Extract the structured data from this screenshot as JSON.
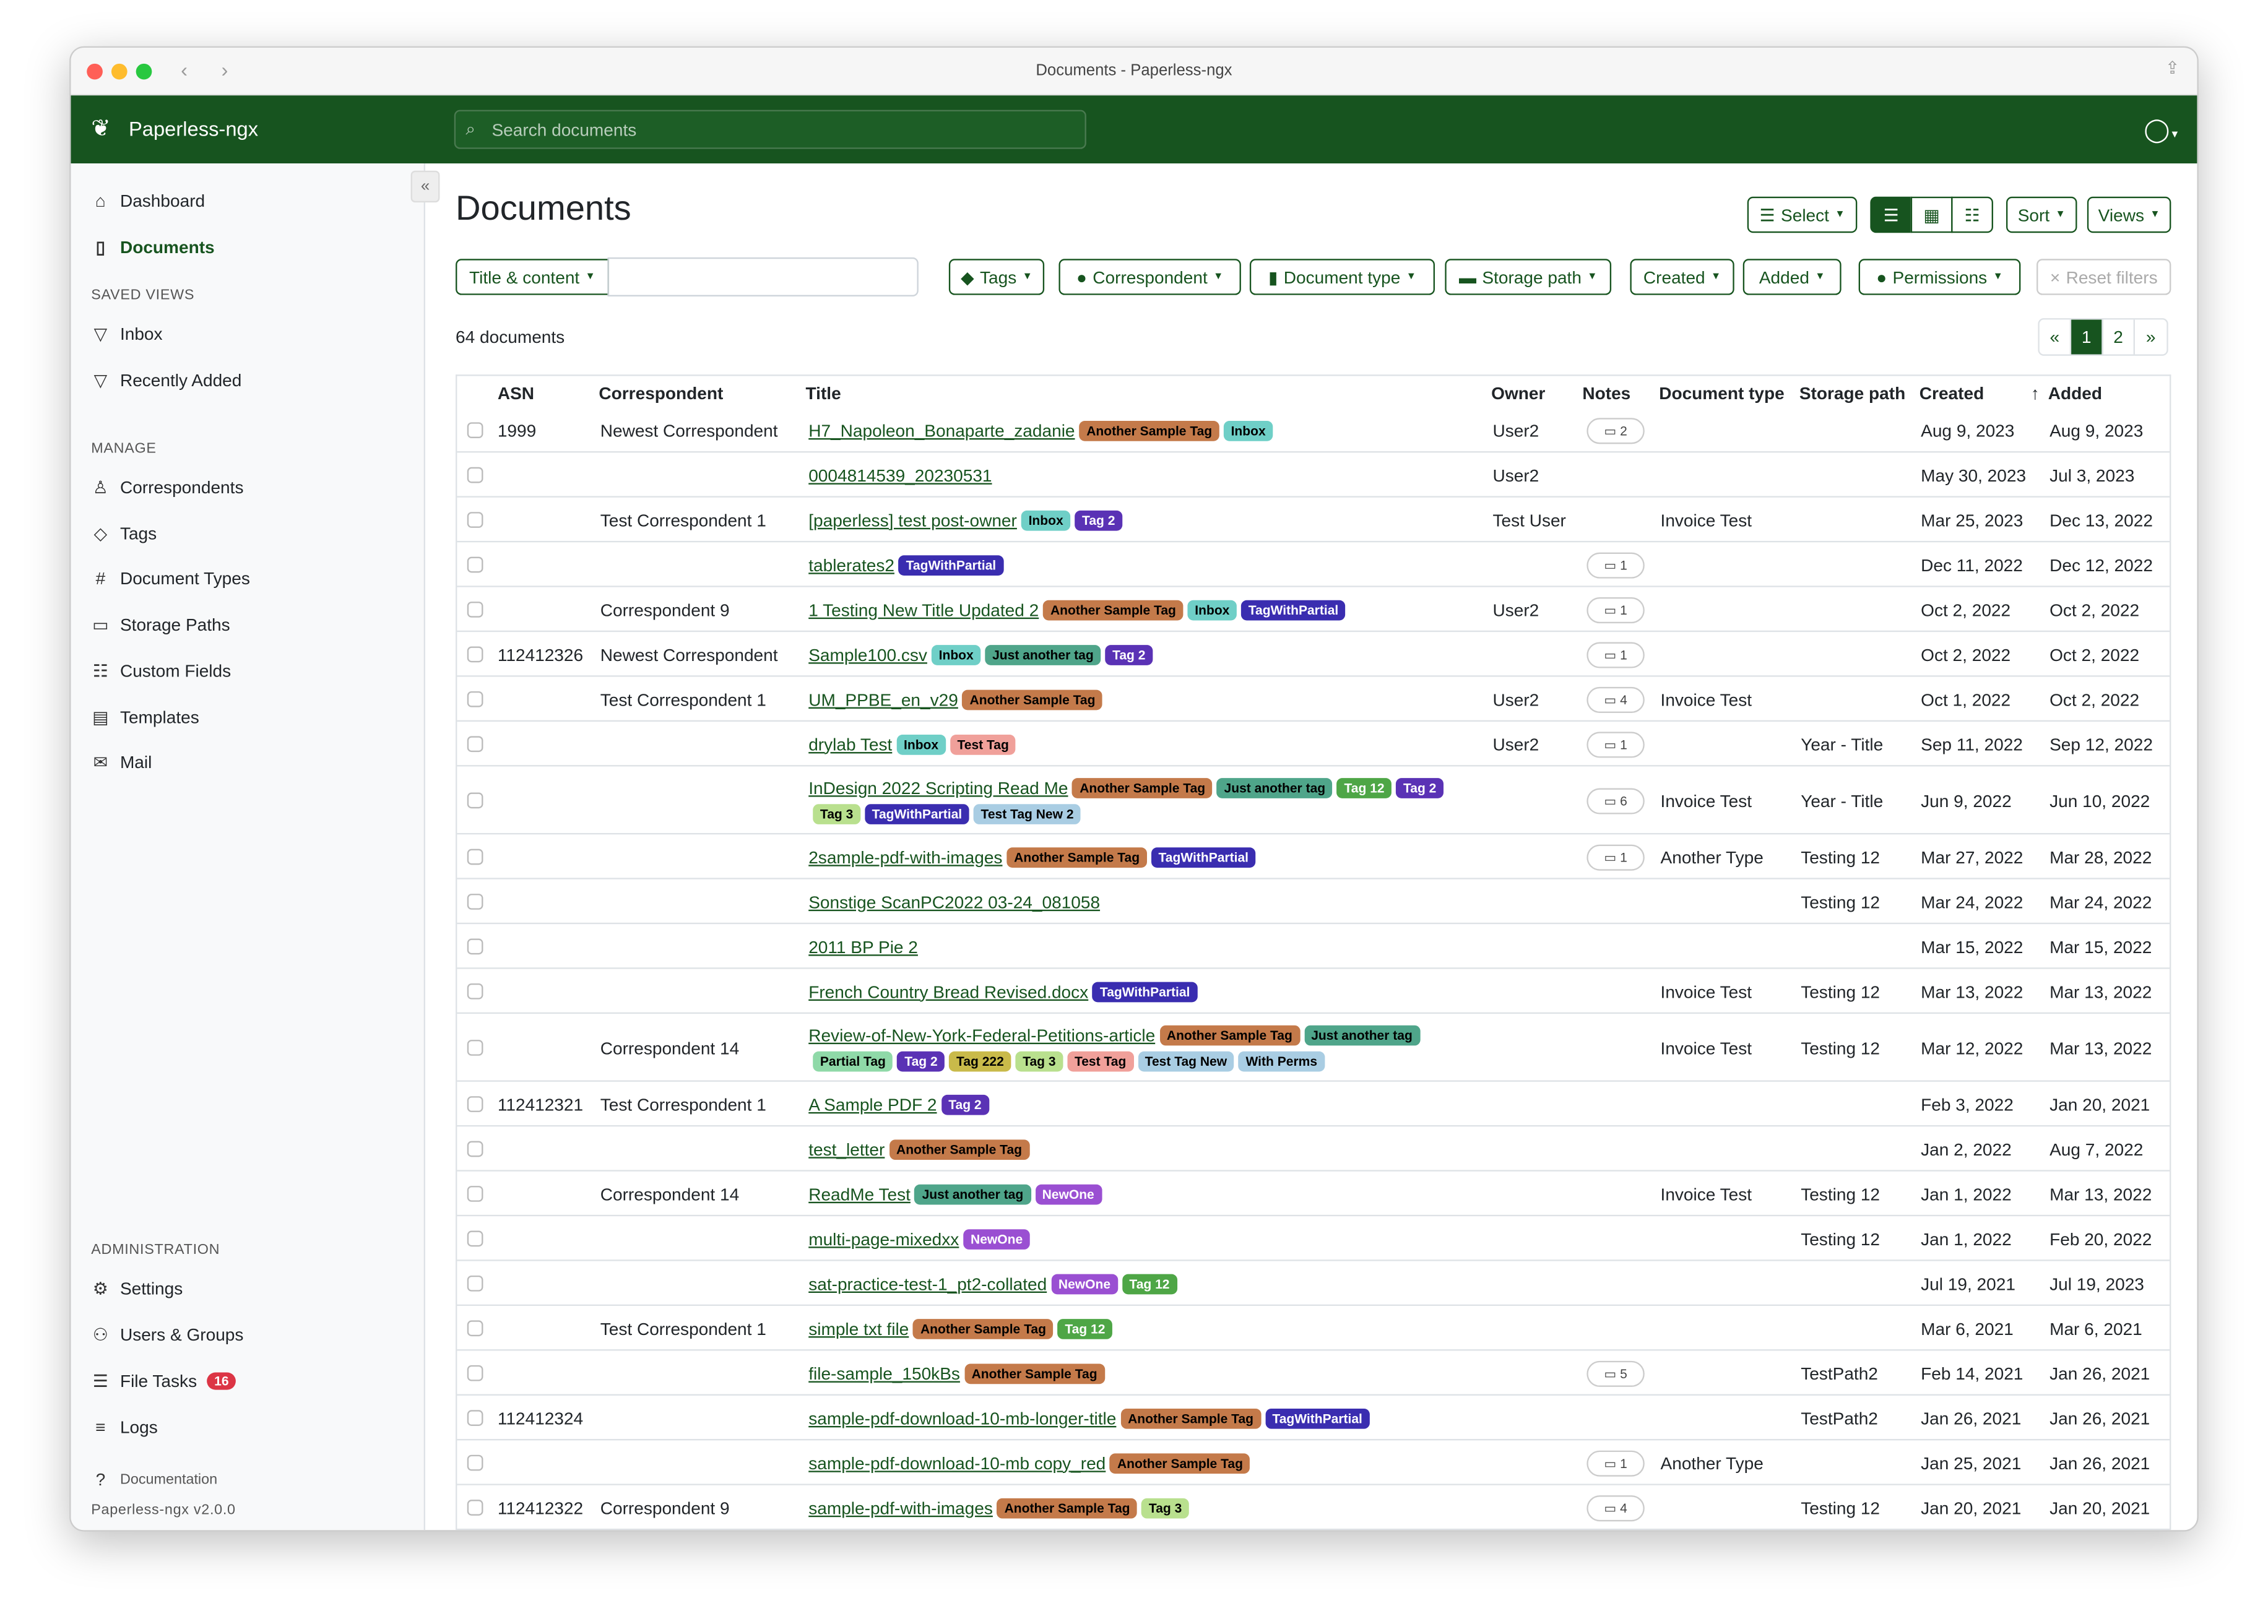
{
  "window": {
    "title": "Documents - Paperless-ngx"
  },
  "header": {
    "brand": "Paperless-ngx",
    "search_placeholder": "Search documents"
  },
  "sidebar": {
    "items": [
      {
        "label": "Dashboard",
        "icon": "house-icon"
      },
      {
        "label": "Documents",
        "icon": "file-icon"
      }
    ],
    "saved_views_heading": "SAVED VIEWS",
    "saved_views": [
      {
        "label": "Inbox",
        "icon": "funnel-icon"
      },
      {
        "label": "Recently Added",
        "icon": "funnel-icon"
      }
    ],
    "manage_heading": "MANAGE",
    "manage": [
      {
        "label": "Correspondents",
        "icon": "person-icon"
      },
      {
        "label": "Tags",
        "icon": "tag-icon"
      },
      {
        "label": "Document Types",
        "icon": "hash-icon"
      },
      {
        "label": "Storage Paths",
        "icon": "folder-icon"
      },
      {
        "label": "Custom Fields",
        "icon": "ui-radios-icon"
      },
      {
        "label": "Templates",
        "icon": "file-text-icon"
      },
      {
        "label": "Mail",
        "icon": "envelope-icon"
      }
    ],
    "admin_heading": "ADMINISTRATION",
    "admin": [
      {
        "label": "Settings",
        "icon": "gear-icon"
      },
      {
        "label": "Users & Groups",
        "icon": "people-icon"
      },
      {
        "label": "File Tasks",
        "icon": "list-task-icon",
        "badge": "16"
      },
      {
        "label": "Logs",
        "icon": "text-lines-icon"
      }
    ],
    "documentation": "Documentation",
    "version": "Paperless-ngx v2.0.0"
  },
  "main": {
    "title": "Documents",
    "select": "Select",
    "sort": "Sort",
    "views": "Views",
    "filters": {
      "title_content": "Title & content",
      "tags": "Tags",
      "correspondent": "Correspondent",
      "document_type": "Document type",
      "storage_path": "Storage path",
      "created": "Created",
      "added": "Added",
      "permissions": "Permissions",
      "reset": "Reset filters"
    },
    "count": "64 documents",
    "pager": [
      "«",
      "1",
      "2",
      "»"
    ],
    "columns": {
      "asn": "ASN",
      "correspondent": "Correspondent",
      "title": "Title",
      "owner": "Owner",
      "notes": "Notes",
      "doctype": "Document type",
      "storage": "Storage path",
      "created": "Created",
      "added": "Added"
    }
  },
  "tag_colors": {
    "Another Sample Tag": [
      "#c47a4a",
      "#000"
    ],
    "Inbox": [
      "#6fcfc7",
      "#000"
    ],
    "Tag 2": [
      "#5a32b5",
      "#fff"
    ],
    "TagWithPartial": [
      "#3a2db0",
      "#fff"
    ],
    "Just another tag": [
      "#4fa58a",
      "#000"
    ],
    "Tag 12": [
      "#4ea646",
      "#fff"
    ],
    "Tag 3": [
      "#b9e08e",
      "#000"
    ],
    "Test Tag": [
      "#f0a09a",
      "#000"
    ],
    "Test Tag New 2": [
      "#a9cde3",
      "#000"
    ],
    "Test Tag New": [
      "#a9cde3",
      "#000"
    ],
    "Partial Tag": [
      "#8fd9a8",
      "#000"
    ],
    "Tag 222": [
      "#c9ba4a",
      "#000"
    ],
    "With Perms": [
      "#a9cde3",
      "#000"
    ],
    "NewOne": [
      "#9a4fd2",
      "#fff"
    ]
  },
  "rows": [
    {
      "asn": "1999",
      "corr": "Newest Correspondent",
      "title": "H7_Napoleon_Bonaparte_zadanie",
      "tags": [
        "Another Sample Tag",
        "Inbox"
      ],
      "owner": "User2",
      "notes": "2",
      "doctype": "",
      "storage": "",
      "created": "Aug 9, 2023",
      "added": "Aug 9, 2023"
    },
    {
      "asn": "",
      "corr": "",
      "title": "0004814539_20230531",
      "tags": [],
      "owner": "User2",
      "notes": "",
      "doctype": "",
      "storage": "",
      "created": "May 30, 2023",
      "added": "Jul 3, 2023"
    },
    {
      "asn": "",
      "corr": "Test Correspondent 1",
      "title": "[paperless] test post-owner",
      "tags": [
        "Inbox",
        "Tag 2"
      ],
      "owner": "Test User",
      "notes": "",
      "doctype": "Invoice Test",
      "storage": "",
      "created": "Mar 25, 2023",
      "added": "Dec 13, 2022"
    },
    {
      "asn": "",
      "corr": "",
      "title": "tablerates2",
      "tags": [
        "TagWithPartial"
      ],
      "owner": "",
      "notes": "1",
      "doctype": "",
      "storage": "",
      "created": "Dec 11, 2022",
      "added": "Dec 12, 2022"
    },
    {
      "asn": "",
      "corr": "Correspondent 9",
      "title": "1 Testing New Title Updated 2",
      "tags": [
        "Another Sample Tag",
        "Inbox",
        "TagWithPartial"
      ],
      "owner": "User2",
      "notes": "1",
      "doctype": "",
      "storage": "",
      "created": "Oct 2, 2022",
      "added": "Oct 2, 2022"
    },
    {
      "asn": "112412326",
      "corr": "Newest Correspondent",
      "title": "Sample100.csv",
      "tags": [
        "Inbox",
        "Just another tag",
        "Tag 2"
      ],
      "owner": "",
      "notes": "1",
      "doctype": "",
      "storage": "",
      "created": "Oct 2, 2022",
      "added": "Oct 2, 2022"
    },
    {
      "asn": "",
      "corr": "Test Correspondent 1",
      "title": "UM_PPBE_en_v29",
      "tags": [
        "Another Sample Tag"
      ],
      "owner": "User2",
      "notes": "4",
      "doctype": "Invoice Test",
      "storage": "",
      "created": "Oct 1, 2022",
      "added": "Oct 2, 2022"
    },
    {
      "asn": "",
      "corr": "",
      "title": "drylab Test",
      "tags": [
        "Inbox",
        "Test Tag"
      ],
      "owner": "User2",
      "notes": "1",
      "doctype": "",
      "storage": "Year - Title",
      "created": "Sep 11, 2022",
      "added": "Sep 12, 2022"
    },
    {
      "asn": "",
      "corr": "",
      "title": "InDesign 2022 Scripting Read Me",
      "tags": [
        "Another Sample Tag",
        "Just another tag",
        "Tag 12",
        "Tag 2",
        "Tag 3",
        "TagWithPartial",
        "Test Tag New 2"
      ],
      "owner": "",
      "notes": "6",
      "doctype": "Invoice Test",
      "storage": "Year - Title",
      "created": "Jun 9, 2022",
      "added": "Jun 10, 2022"
    },
    {
      "asn": "",
      "corr": "",
      "title": "2sample-pdf-with-images",
      "tags": [
        "Another Sample Tag",
        "TagWithPartial"
      ],
      "owner": "",
      "notes": "1",
      "doctype": "Another Type",
      "storage": "Testing 12",
      "created": "Mar 27, 2022",
      "added": "Mar 28, 2022"
    },
    {
      "asn": "",
      "corr": "",
      "title": "Sonstige ScanPC2022 03-24_081058",
      "tags": [],
      "owner": "",
      "notes": "",
      "doctype": "",
      "storage": "Testing 12",
      "created": "Mar 24, 2022",
      "added": "Mar 24, 2022"
    },
    {
      "asn": "",
      "corr": "",
      "title": "2011 BP Pie 2",
      "tags": [],
      "owner": "",
      "notes": "",
      "doctype": "",
      "storage": "",
      "created": "Mar 15, 2022",
      "added": "Mar 15, 2022"
    },
    {
      "asn": "",
      "corr": "",
      "title": "French Country Bread Revised.docx",
      "tags": [
        "TagWithPartial"
      ],
      "owner": "",
      "notes": "",
      "doctype": "Invoice Test",
      "storage": "Testing 12",
      "created": "Mar 13, 2022",
      "added": "Mar 13, 2022"
    },
    {
      "asn": "",
      "corr": "Correspondent 14",
      "title": "Review-of-New-York-Federal-Petitions-article",
      "tags": [
        "Another Sample Tag",
        "Just another tag",
        "Partial Tag",
        "Tag 2",
        "Tag 222",
        "Tag 3",
        "Test Tag",
        "Test Tag New",
        "With Perms"
      ],
      "owner": "",
      "notes": "",
      "doctype": "Invoice Test",
      "storage": "Testing 12",
      "created": "Mar 12, 2022",
      "added": "Mar 13, 2022"
    },
    {
      "asn": "112412321",
      "corr": "Test Correspondent 1",
      "title": "A Sample PDF 2",
      "tags": [
        "Tag 2"
      ],
      "owner": "",
      "notes": "",
      "doctype": "",
      "storage": "",
      "created": "Feb 3, 2022",
      "added": "Jan 20, 2021"
    },
    {
      "asn": "",
      "corr": "",
      "title": "test_letter",
      "tags": [
        "Another Sample Tag"
      ],
      "owner": "",
      "notes": "",
      "doctype": "",
      "storage": "",
      "created": "Jan 2, 2022",
      "added": "Aug 7, 2022"
    },
    {
      "asn": "",
      "corr": "Correspondent 14",
      "title": "ReadMe Test",
      "tags": [
        "Just another tag",
        "NewOne"
      ],
      "owner": "",
      "notes": "",
      "doctype": "Invoice Test",
      "storage": "Testing 12",
      "created": "Jan 1, 2022",
      "added": "Mar 13, 2022"
    },
    {
      "asn": "",
      "corr": "",
      "title": "multi-page-mixedxx",
      "tags": [
        "NewOne"
      ],
      "owner": "",
      "notes": "",
      "doctype": "",
      "storage": "Testing 12",
      "created": "Jan 1, 2022",
      "added": "Feb 20, 2022"
    },
    {
      "asn": "",
      "corr": "",
      "title": "sat-practice-test-1_pt2-collated",
      "tags": [
        "NewOne",
        "Tag 12"
      ],
      "owner": "",
      "notes": "",
      "doctype": "",
      "storage": "",
      "created": "Jul 19, 2021",
      "added": "Jul 19, 2023"
    },
    {
      "asn": "",
      "corr": "Test Correspondent 1",
      "title": "simple txt file",
      "tags": [
        "Another Sample Tag",
        "Tag 12"
      ],
      "owner": "",
      "notes": "",
      "doctype": "",
      "storage": "",
      "created": "Mar 6, 2021",
      "added": "Mar 6, 2021"
    },
    {
      "asn": "",
      "corr": "",
      "title": "file-sample_150kBs",
      "tags": [
        "Another Sample Tag"
      ],
      "owner": "",
      "notes": "5",
      "doctype": "",
      "storage": "TestPath2",
      "created": "Feb 14, 2021",
      "added": "Jan 26, 2021"
    },
    {
      "asn": "112412324",
      "corr": "",
      "title": "sample-pdf-download-10-mb-longer-title",
      "tags": [
        "Another Sample Tag",
        "TagWithPartial"
      ],
      "owner": "",
      "notes": "",
      "doctype": "",
      "storage": "TestPath2",
      "created": "Jan 26, 2021",
      "added": "Jan 26, 2021"
    },
    {
      "asn": "",
      "corr": "",
      "title": "sample-pdf-download-10-mb copy_red",
      "tags": [
        "Another Sample Tag"
      ],
      "owner": "",
      "notes": "1",
      "doctype": "Another Type",
      "storage": "",
      "created": "Jan 25, 2021",
      "added": "Jan 26, 2021"
    },
    {
      "asn": "112412322",
      "corr": "Correspondent 9",
      "title": "sample-pdf-with-images",
      "tags": [
        "Another Sample Tag",
        "Tag 3"
      ],
      "owner": "",
      "notes": "4",
      "doctype": "",
      "storage": "Testing 12",
      "created": "Jan 20, 2021",
      "added": "Jan 20, 2021"
    }
  ]
}
